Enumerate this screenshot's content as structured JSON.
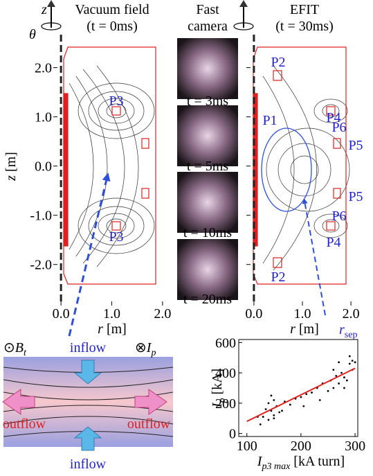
{
  "axis_symbols": {
    "z": "z",
    "theta": "θ"
  },
  "panels": [
    {
      "title": [
        "Vacuum field",
        "(t = 0ms)"
      ],
      "xlim": [
        -0.07,
        2.07
      ],
      "ylim": [
        -2.75,
        2.6
      ],
      "xticks": [
        {
          "value": 0,
          "label": "0.0"
        },
        {
          "value": 1,
          "label": "1.0"
        },
        {
          "value": 2,
          "label": "2.0"
        }
      ],
      "yticks": [
        {
          "value": 2,
          "label": "2.0"
        },
        {
          "value": 1,
          "label": "1.0"
        },
        {
          "value": 0,
          "label": "0.0"
        },
        {
          "value": -1,
          "label": "-1.0"
        },
        {
          "value": -2,
          "label": "-2.0"
        }
      ],
      "xlabel": {
        "main": "r",
        "rest": " [m]"
      },
      "ylabel": {
        "main": "z",
        "rest": " [m]"
      },
      "labels": [
        "P3",
        "P3"
      ]
    },
    {
      "title": [
        "EFIT",
        "(t = 30ms)"
      ],
      "xlim": [
        -0.07,
        2.07
      ],
      "ylim": [
        -2.75,
        2.6
      ],
      "xticks": [
        {
          "value": 0,
          "label": "0.0"
        },
        {
          "value": 1,
          "label": "1.0"
        },
        {
          "value": 2,
          "label": "2.0"
        }
      ],
      "yticks": [
        2,
        1,
        0,
        -1,
        -2
      ],
      "xlabel": {
        "main": "r",
        "rest": " [m]"
      },
      "labels": [
        "P2",
        "P1",
        "P4",
        "P6",
        "P5",
        "P5",
        "P6",
        "P4",
        "P2"
      ],
      "annotation": {
        "main": "r",
        "sub": "sep"
      }
    }
  ],
  "camera": {
    "title": [
      "Fast",
      "camera"
    ],
    "frames": [
      "t = 3ms",
      "t = 5ms",
      "t = 10ms",
      "t = 20ms"
    ]
  },
  "diagram": {
    "bt": {
      "symbol": "⊙",
      "main": "B",
      "sub": "t"
    },
    "ip": {
      "symbol": "⊗",
      "main": "I",
      "sub": "p"
    },
    "inflow": [
      "inflow",
      "inflow"
    ],
    "outflow": [
      "outflow",
      "outflow"
    ]
  },
  "chart_data": {
    "type": "scatter",
    "x": [
      130,
      135,
      140,
      145,
      150,
      150,
      155,
      160,
      140,
      145,
      170,
      180,
      190,
      200,
      210,
      220,
      230,
      240,
      250,
      255,
      260,
      265,
      270,
      270,
      275,
      280,
      285,
      290,
      290,
      295,
      295,
      120,
      125,
      165,
      205,
      235,
      260,
      280,
      300,
      150
    ],
    "y": [
      110,
      160,
      200,
      150,
      120,
      220,
      180,
      140,
      90,
      250,
      210,
      190,
      230,
      240,
      260,
      270,
      300,
      330,
      280,
      350,
      420,
      380,
      470,
      330,
      400,
      300,
      350,
      460,
      510,
      420,
      480,
      110,
      60,
      150,
      180,
      220,
      300,
      370,
      470,
      100
    ],
    "color": "#000000",
    "fit": {
      "x": [
        100,
        300
      ],
      "y": [
        80,
        430
      ],
      "color": "#e02020"
    },
    "xlim": [
      85,
      305
    ],
    "ylim": [
      -20,
      620
    ],
    "xticks": [
      100,
      200,
      300
    ],
    "yticks": [
      0,
      200,
      400,
      600
    ],
    "ylabel": {
      "main": "I",
      "sub": "p",
      "rest": " [kA]"
    },
    "xlabel": {
      "main": "I",
      "sub": "p3 max",
      "rest": " [kA turn]"
    }
  }
}
